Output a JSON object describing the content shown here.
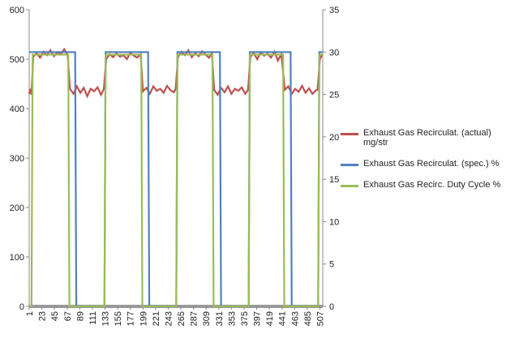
{
  "chart_data": {
    "type": "line",
    "xlim": [
      1,
      512
    ],
    "xticks": [
      1,
      23,
      45,
      67,
      89,
      111,
      133,
      155,
      177,
      199,
      221,
      243,
      265,
      287,
      309,
      331,
      353,
      375,
      397,
      419,
      441,
      463,
      485,
      507
    ],
    "ylim": [
      0,
      600
    ],
    "yticks": [
      0,
      100,
      200,
      300,
      400,
      500,
      600
    ],
    "y2lim": [
      0,
      35
    ],
    "y2ticks": [
      0,
      5,
      10,
      15,
      20,
      25,
      30,
      35
    ],
    "series": [
      {
        "name": "Exhaust Gas Recirculat. (actual) mg/str",
        "color": "#c0504d",
        "x": [
          1,
          3,
          5,
          8,
          14,
          20,
          26,
          32,
          38,
          44,
          50,
          56,
          62,
          68,
          72,
          78,
          84,
          90,
          96,
          102,
          108,
          114,
          120,
          126,
          131,
          135,
          141,
          147,
          153,
          159,
          165,
          171,
          177,
          183,
          189,
          195,
          199,
          205,
          211,
          217,
          223,
          229,
          235,
          241,
          247,
          253,
          256,
          260,
          266,
          272,
          278,
          284,
          290,
          296,
          302,
          308,
          314,
          319,
          323,
          329,
          335,
          341,
          347,
          353,
          359,
          365,
          371,
          377,
          382,
          386,
          392,
          398,
          404,
          410,
          416,
          422,
          428,
          434,
          440,
          446,
          452,
          458,
          464,
          470,
          476,
          482,
          488,
          494,
          500,
          503,
          507,
          511
        ],
        "values": [
          430,
          440,
          428,
          505,
          512,
          503,
          515,
          508,
          518,
          506,
          514,
          510,
          520,
          508,
          440,
          430,
          445,
          432,
          442,
          425,
          440,
          435,
          443,
          428,
          440,
          500,
          510,
          504,
          512,
          505,
          508,
          500,
          513,
          507,
          503,
          510,
          435,
          442,
          430,
          445,
          436,
          440,
          432,
          446,
          437,
          433,
          440,
          505,
          515,
          508,
          518,
          504,
          512,
          506,
          516,
          509,
          503,
          512,
          438,
          428,
          442,
          433,
          445,
          430,
          440,
          436,
          443,
          430,
          438,
          505,
          512,
          500,
          514,
          507,
          511,
          503,
          515,
          497,
          510,
          438,
          445,
          430,
          440,
          434,
          446,
          432,
          441,
          430,
          437,
          438,
          500,
          510
        ]
      },
      {
        "name": "Exhaust Gas Recirculat. (spec.)  %",
        "color": "#4f81bd",
        "axis": "y2",
        "x": [
          1,
          81,
          83,
          132,
          134,
          208,
          210,
          257,
          259,
          333,
          335,
          383,
          385,
          456,
          458,
          504,
          506,
          512
        ],
        "values": [
          30,
          30,
          0,
          0,
          30,
          30,
          0,
          0,
          30,
          30,
          0,
          0,
          30,
          30,
          0,
          0,
          30,
          30
        ]
      },
      {
        "name": "Exhaust Gas Recirc. Duty Cycle  %",
        "color": "#9bbb59",
        "axis": "y2",
        "x": [
          1,
          5,
          7,
          69,
          71,
          132,
          134,
          196,
          198,
          257,
          259,
          320,
          322,
          383,
          385,
          443,
          445,
          504,
          506,
          512
        ],
        "values": [
          0,
          0,
          29.7,
          29.7,
          0,
          0,
          29.7,
          29.7,
          0,
          0,
          29.7,
          29.7,
          0,
          0,
          29.7,
          29.7,
          0,
          0,
          29.7,
          29.7
        ]
      }
    ]
  }
}
